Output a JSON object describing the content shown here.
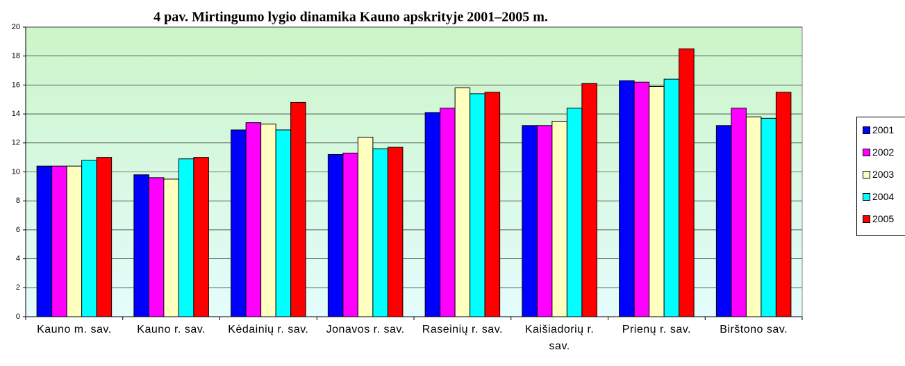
{
  "chart_data": {
    "type": "bar",
    "title": "4 pav. Mirtingumo lygio dinamika Kauno apskrityje 2001–2005 m.",
    "categories": [
      "Kauno m. sav.",
      "Kauno r. sav.",
      "Kėdainių r. sav.",
      "Jonavos r. sav.",
      "Raseinių r. sav.",
      "Kaišiadorių r. sav.",
      "Prienų r. sav.",
      "Birštono sav."
    ],
    "series": [
      {
        "name": "2001",
        "color": "#0000ff",
        "values": [
          10.4,
          9.8,
          12.9,
          11.2,
          14.1,
          13.2,
          16.3,
          13.2
        ]
      },
      {
        "name": "2002",
        "color": "#ff00ff",
        "values": [
          10.4,
          9.6,
          13.4,
          11.3,
          14.4,
          13.2,
          16.2,
          14.4
        ]
      },
      {
        "name": "2003",
        "color": "#ffffc0",
        "values": [
          10.4,
          9.5,
          13.3,
          12.4,
          15.8,
          13.5,
          15.9,
          13.8
        ]
      },
      {
        "name": "2004",
        "color": "#00ffff",
        "values": [
          10.8,
          10.9,
          12.9,
          11.6,
          15.4,
          14.4,
          16.4,
          13.7
        ]
      },
      {
        "name": "2005",
        "color": "#ff0000",
        "values": [
          11.0,
          11.0,
          14.8,
          11.7,
          15.5,
          16.1,
          18.5,
          15.5
        ]
      }
    ],
    "ylim": [
      0,
      20
    ],
    "yticks": [
      0,
      2,
      4,
      6,
      8,
      10,
      12,
      14,
      16,
      18,
      20
    ],
    "grid": true,
    "legend": "right"
  }
}
